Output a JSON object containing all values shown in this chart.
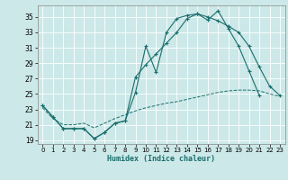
{
  "xlabel": "Humidex (Indice chaleur)",
  "xlim": [
    -0.5,
    23.5
  ],
  "ylim": [
    18.5,
    36.5
  ],
  "yticks": [
    19,
    21,
    23,
    25,
    27,
    29,
    31,
    33,
    35
  ],
  "xticks": [
    0,
    1,
    2,
    3,
    4,
    5,
    6,
    7,
    8,
    9,
    10,
    11,
    12,
    13,
    14,
    15,
    16,
    17,
    18,
    19,
    20,
    21,
    22,
    23
  ],
  "bg_color": "#cce8e8",
  "grid_color": "#b0d4d4",
  "line_color": "#1a6e6e",
  "line1_x": [
    0,
    1,
    2,
    3,
    4,
    5,
    6,
    7,
    8,
    9,
    10,
    11,
    12,
    13,
    14,
    15,
    16,
    17,
    18,
    19,
    20,
    21
  ],
  "line1_y": [
    23.5,
    22.0,
    20.5,
    20.5,
    20.5,
    19.2,
    20.0,
    21.2,
    21.5,
    25.2,
    31.2,
    27.8,
    33.0,
    34.8,
    35.2,
    35.4,
    34.6,
    35.8,
    33.5,
    31.2,
    28.0,
    24.8
  ],
  "line2_x": [
    0,
    1,
    2,
    3,
    4,
    5,
    6,
    7,
    8,
    9,
    10,
    11,
    12,
    13,
    14,
    15,
    16,
    17,
    18,
    19,
    20,
    21,
    22,
    23
  ],
  "line2_y": [
    23.5,
    22.0,
    20.5,
    20.5,
    20.5,
    19.2,
    20.0,
    21.2,
    21.5,
    27.2,
    28.8,
    30.2,
    31.6,
    33.0,
    34.8,
    35.4,
    35.0,
    34.5,
    33.8,
    33.0,
    31.2,
    28.5,
    26.0,
    24.8
  ],
  "line3_x": [
    0,
    1,
    2,
    3,
    4,
    5,
    6,
    7,
    8,
    9,
    10,
    11,
    12,
    13,
    14,
    15,
    16,
    17,
    18,
    19,
    20,
    21,
    22,
    23
  ],
  "line3_y": [
    23.2,
    21.8,
    21.0,
    21.0,
    21.2,
    20.6,
    21.2,
    21.8,
    22.3,
    22.8,
    23.2,
    23.5,
    23.8,
    24.0,
    24.3,
    24.6,
    24.9,
    25.2,
    25.4,
    25.5,
    25.5,
    25.4,
    25.0,
    24.7
  ],
  "figsize": [
    3.2,
    2.0
  ],
  "dpi": 100
}
